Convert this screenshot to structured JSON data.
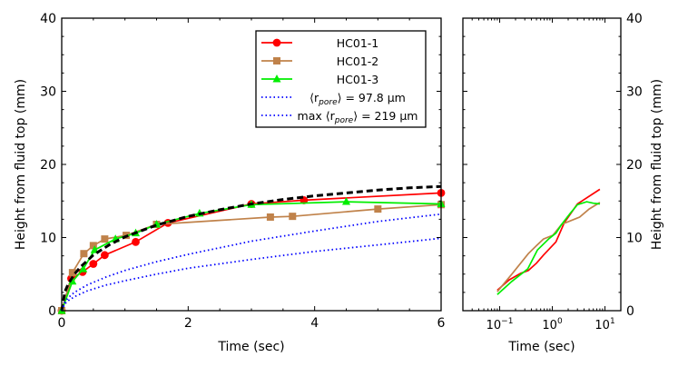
{
  "chart_data": [
    {
      "type": "line",
      "xlabel": "Time (sec)",
      "ylabel": "Height from fluid top (mm)",
      "xlim": [
        0,
        6
      ],
      "ylim": [
        0,
        40
      ],
      "xticks": [
        0,
        2,
        4,
        6
      ],
      "yticks": [
        0,
        10,
        20,
        30,
        40
      ],
      "grid": false,
      "legend_position": "top-right",
      "series": [
        {
          "name": "HC01-1",
          "color": "#ff0000",
          "marker": "circle",
          "x": [
            0,
            0.15,
            0.33,
            0.5,
            0.68,
            1.17,
            1.68,
            3.0,
            3.83,
            6.0
          ],
          "y": [
            0,
            4.4,
            5.3,
            6.4,
            7.6,
            9.4,
            12.0,
            14.6,
            15.1,
            16.1
          ]
        },
        {
          "name": "HC01-2",
          "color": "#c0824a",
          "marker": "square",
          "x": [
            0,
            0.17,
            0.35,
            0.5,
            0.68,
            1.02,
            1.5,
            3.3,
            3.65,
            5.0,
            6.0
          ],
          "y": [
            0,
            5.2,
            7.8,
            8.9,
            9.8,
            10.3,
            11.8,
            12.8,
            12.9,
            13.9,
            14.5
          ]
        },
        {
          "name": "HC01-3",
          "color": "#00ee00",
          "marker": "triangle",
          "x": [
            0,
            0.17,
            0.34,
            0.52,
            0.85,
            1.17,
            1.5,
            2.18,
            3.0,
            4.5,
            6.0
          ],
          "y": [
            0,
            4.0,
            5.7,
            8.3,
            9.8,
            10.6,
            11.8,
            13.3,
            14.5,
            14.9,
            14.6
          ]
        },
        {
          "name": "",
          "color": "#000000",
          "style": "dashed",
          "x": [
            0,
            0.05,
            0.1,
            0.2,
            0.3,
            0.5,
            0.75,
            1.0,
            1.5,
            2.0,
            2.5,
            3.0,
            3.5,
            4.0,
            4.5,
            5.0,
            5.5,
            6.0
          ],
          "y": [
            0,
            2.6,
            3.6,
            5.0,
            6.0,
            7.6,
            9.0,
            10.1,
            11.7,
            12.9,
            13.8,
            14.6,
            15.2,
            15.7,
            16.1,
            16.5,
            16.8,
            17.0
          ]
        },
        {
          "name": "⟨r_pore⟩ = 97.8 μm",
          "color": "#0000ff",
          "style": "dotted",
          "x": [
            0,
            0.05,
            0.1,
            0.2,
            0.4,
            0.7,
            1.0,
            1.5,
            2.0,
            3.0,
            4.0,
            5.0,
            6.0
          ],
          "y": [
            0,
            0.95,
            1.35,
            1.9,
            2.7,
            3.5,
            4.1,
            5.0,
            5.8,
            7.0,
            8.1,
            9.0,
            9.9
          ]
        },
        {
          "name": "max ⟨r_pore⟩ = 219 μm",
          "color": "#0000ff",
          "style": "dotted",
          "x": [
            0,
            0.05,
            0.1,
            0.2,
            0.4,
            0.7,
            1.0,
            1.5,
            2.0,
            3.0,
            4.0,
            5.0,
            6.0
          ],
          "y": [
            0,
            1.2,
            1.75,
            2.5,
            3.5,
            4.6,
            5.5,
            6.7,
            7.7,
            9.5,
            10.9,
            12.2,
            13.2
          ]
        }
      ],
      "legend": [
        {
          "name": "HC01-1",
          "label": "HC01-1",
          "color": "#ff0000",
          "marker": "circle",
          "style": "solid"
        },
        {
          "name": "HC01-2",
          "label": "HC01-2",
          "color": "#c0824a",
          "marker": "square",
          "style": "solid"
        },
        {
          "name": "HC01-3",
          "label": "HC01-3",
          "color": "#00ee00",
          "marker": "triangle",
          "style": "solid"
        },
        {
          "name": "mean-pore",
          "label": "⟨r",
          "sub": "pore",
          "tail": "⟩ = 97.8 μm",
          "color": "#0000ff",
          "style": "dotted"
        },
        {
          "name": "max-pore",
          "label": "max ⟨r",
          "sub": "pore",
          "tail": "⟩ = 219 μm",
          "color": "#0000ff",
          "style": "dotted"
        }
      ]
    },
    {
      "type": "line",
      "xlabel": "Time (sec)",
      "ylabel": "Height from fluid top (mm)",
      "xscale": "log",
      "xlim": [
        0.02,
        20
      ],
      "ylim": [
        0,
        40
      ],
      "xticks": [
        0.1,
        1,
        10
      ],
      "xtick_labels": [
        {
          "base": "10",
          "exp": "−1"
        },
        {
          "base": "10",
          "exp": "0"
        },
        {
          "base": "10",
          "exp": "1"
        }
      ],
      "yticks": [
        0,
        10,
        20,
        30,
        40
      ],
      "y_axis_side": "right",
      "grid": false,
      "series": [
        {
          "name": "HC01-1",
          "color": "#ff0000",
          "x": [
            0.09,
            0.15,
            0.25,
            0.35,
            0.5,
            0.68,
            1.17,
            1.68,
            3.0,
            3.83,
            8.0
          ],
          "y": [
            2.8,
            4.2,
            5.1,
            5.5,
            6.5,
            7.6,
            9.4,
            12.0,
            14.6,
            15.1,
            16.6
          ]
        },
        {
          "name": "HC01-2",
          "color": "#c0824a",
          "x": [
            0.09,
            0.17,
            0.35,
            0.5,
            0.68,
            1.02,
            1.5,
            3.3,
            5.0,
            8.0
          ],
          "y": [
            2.6,
            5.0,
            7.8,
            8.9,
            9.8,
            10.3,
            11.8,
            12.8,
            13.9,
            14.8
          ]
        },
        {
          "name": "HC01-3",
          "color": "#00ee00",
          "x": [
            0.09,
            0.17,
            0.34,
            0.52,
            0.85,
            1.17,
            1.5,
            2.18,
            3.0,
            4.5,
            6.0,
            8.0
          ],
          "y": [
            2.2,
            4.0,
            5.7,
            8.3,
            9.8,
            10.6,
            11.8,
            13.3,
            14.5,
            14.9,
            14.7,
            14.6
          ]
        }
      ]
    }
  ]
}
